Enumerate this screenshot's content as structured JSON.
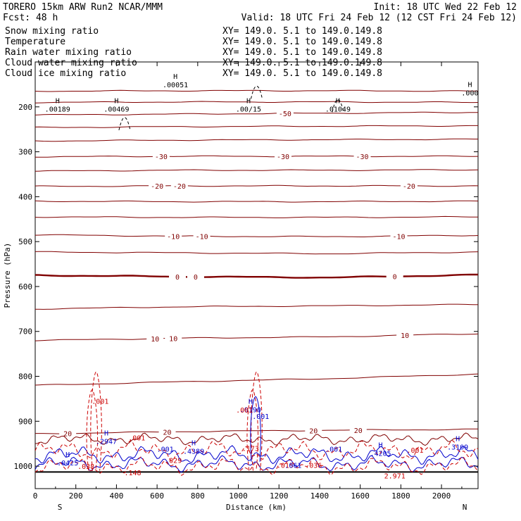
{
  "header": {
    "model": "TORERO  15km ARW   Run2    NCAR/MMM",
    "init": "Init: 18 UTC Wed 22 Feb 12",
    "fcst": "Fcst:   48 h",
    "valid": "Valid: 18 UTC Fri 24 Feb 12 (12 CST Fri 24 Feb 12)"
  },
  "colors": {
    "snow": "#000000",
    "temperature": "#800000",
    "rain": "#cc0000",
    "cloud_water": "#0000cc",
    "cloud_ice": "#000000"
  },
  "legend": [
    {
      "name": "Snow mixing ratio",
      "xy": "XY= 149.0.  5.1 to 149.0.149.8",
      "color": "#000000"
    },
    {
      "name": "Temperature",
      "xy": "XY= 149.0.  5.1 to 149.0.149.8",
      "color": "#cc0000"
    },
    {
      "name": "Rain water mixing ratio",
      "xy": "XY= 149.0.  5.1 to 149.0.149.8",
      "color": "#cc0000"
    },
    {
      "name": "Cloud water mixing ratio",
      "xy": "XY= 149.0.  5.1 to 149.0.149.8",
      "color": "#0000cc"
    },
    {
      "name": "Cloud ice mixing ratio",
      "xy": "XY= 149.0.  5.1 to 149.0.149.8",
      "color": "#000000"
    }
  ],
  "chart_data": {
    "type": "contour_cross_section",
    "xlabel": "Distance (km)",
    "ylabel": "Pressure (hPa)",
    "xlim": [
      0,
      2180
    ],
    "ylim": [
      1050,
      100
    ],
    "x_ticks": [
      0,
      200,
      400,
      600,
      800,
      1000,
      1200,
      1400,
      1600,
      1800,
      2000
    ],
    "y_ticks": [
      200,
      300,
      400,
      500,
      600,
      700,
      800,
      900,
      1000
    ],
    "endpoints": {
      "left": "S",
      "right": "N"
    },
    "temperature_isotherms": [
      {
        "p": [
          165,
          164,
          164,
          165
        ],
        "labels": []
      },
      {
        "p": [
          190,
          189,
          189,
          190
        ],
        "labels": []
      },
      {
        "p": [
          218,
          216,
          214,
          212
        ],
        "labels": [
          {
            "x": 1230,
            "text": "-50"
          }
        ]
      },
      {
        "p": [
          246,
          244,
          243,
          242
        ],
        "labels": []
      },
      {
        "p": [
          276,
          274,
          273,
          272
        ],
        "labels": []
      },
      {
        "p": [
          311,
          310,
          310,
          310
        ],
        "labels": [
          {
            "x": 620,
            "text": "-30"
          },
          {
            "x": 1220,
            "text": "-30"
          },
          {
            "x": 1610,
            "text": "-30"
          }
        ]
      },
      {
        "p": [
          343,
          341,
          341,
          340
        ],
        "labels": []
      },
      {
        "p": [
          377,
          376,
          376,
          376
        ],
        "labels": [
          {
            "x": 600,
            "text": "-20"
          },
          {
            "x": 710,
            "text": "-20"
          },
          {
            "x": 1840,
            "text": "-20"
          }
        ]
      },
      {
        "p": [
          410,
          411,
          411,
          410
        ],
        "labels": []
      },
      {
        "p": [
          445,
          446,
          446,
          445
        ],
        "labels": []
      },
      {
        "p": [
          485,
          488,
          489,
          486
        ],
        "labels": [
          {
            "x": 680,
            "text": "-10"
          },
          {
            "x": 820,
            "text": "-10"
          },
          {
            "x": 1790,
            "text": "-10"
          }
        ]
      },
      {
        "p": [
          523,
          525,
          527,
          523
        ],
        "labels": []
      },
      {
        "p": [
          575,
          578,
          580,
          574
        ],
        "labels": [
          {
            "x": 700,
            "text": "0"
          },
          {
            "x": 790,
            "text": "0"
          },
          {
            "x": 1770,
            "text": "0"
          }
        ],
        "bold": true
      },
      {
        "p": [
          650,
          645,
          643,
          640
        ],
        "labels": []
      },
      {
        "p": [
          720,
          715,
          712,
          705
        ],
        "labels": [
          {
            "x": 590,
            "text": "10"
          },
          {
            "x": 680,
            "text": "10"
          },
          {
            "x": 1820,
            "text": "10"
          }
        ]
      },
      {
        "p": [
          820,
          812,
          805,
          795
        ],
        "labels": []
      },
      {
        "p": [
          928,
          923,
          920,
          918
        ],
        "labels": [
          {
            "x": 160,
            "text": "20"
          },
          {
            "x": 650,
            "text": "20"
          },
          {
            "x": 1370,
            "text": "20"
          },
          {
            "x": 1590,
            "text": "20"
          }
        ]
      }
    ],
    "highs": [
      {
        "x": 690,
        "p": 153,
        "value": ".00051"
      },
      {
        "x": 110,
        "p": 207,
        "value": ".00189"
      },
      {
        "x": 400,
        "p": 207,
        "value": ".00469"
      },
      {
        "x": 1050,
        "p": 207,
        "value": ".00/15"
      },
      {
        "x": 1490,
        "p": 207,
        "value": ".01049"
      },
      {
        "x": 2140,
        "p": 171,
        "value": ".000"
      },
      {
        "x": 1060,
        "p": 877,
        "value": ".0190"
      },
      {
        "x": 350,
        "p": 947,
        "value": ".2947"
      },
      {
        "x": 780,
        "p": 969,
        "value": ".4389"
      },
      {
        "x": 1700,
        "p": 974,
        "value": ".4205"
      },
      {
        "x": 2080,
        "p": 960,
        "value": ".3109"
      },
      {
        "x": 160,
        "p": 995,
        "value": ".0425"
      }
    ],
    "rain_labels": [
      {
        "x": 320,
        "p": 861,
        "text": ".001"
      },
      {
        "x": 500,
        "p": 943,
        "text": ".001"
      },
      {
        "x": 680,
        "p": 993,
        "text": ".029"
      },
      {
        "x": 250,
        "p": 1006,
        "text": ".038"
      },
      {
        "x": 480,
        "p": 1020,
        "text": ".148"
      },
      {
        "x": 1030,
        "p": 881,
        "text": ".001"
      },
      {
        "x": 1060,
        "p": 966,
        "text": ".173"
      },
      {
        "x": 1370,
        "p": 1004,
        "text": ".036"
      },
      {
        "x": 1770,
        "p": 1027,
        "text": "2.971"
      },
      {
        "x": 1870,
        "p": 970,
        "text": ".001"
      },
      {
        "x": 1230,
        "p": 1004,
        "text": ".015"
      }
    ],
    "cloud_labels": [
      {
        "x": 640,
        "p": 968,
        "text": ".001"
      },
      {
        "x": 1270,
        "p": 1004,
        "text": ".061"
      },
      {
        "x": 1470,
        "p": 968,
        "text": ".001"
      },
      {
        "x": 1110,
        "p": 895,
        "text": ".001"
      }
    ]
  }
}
